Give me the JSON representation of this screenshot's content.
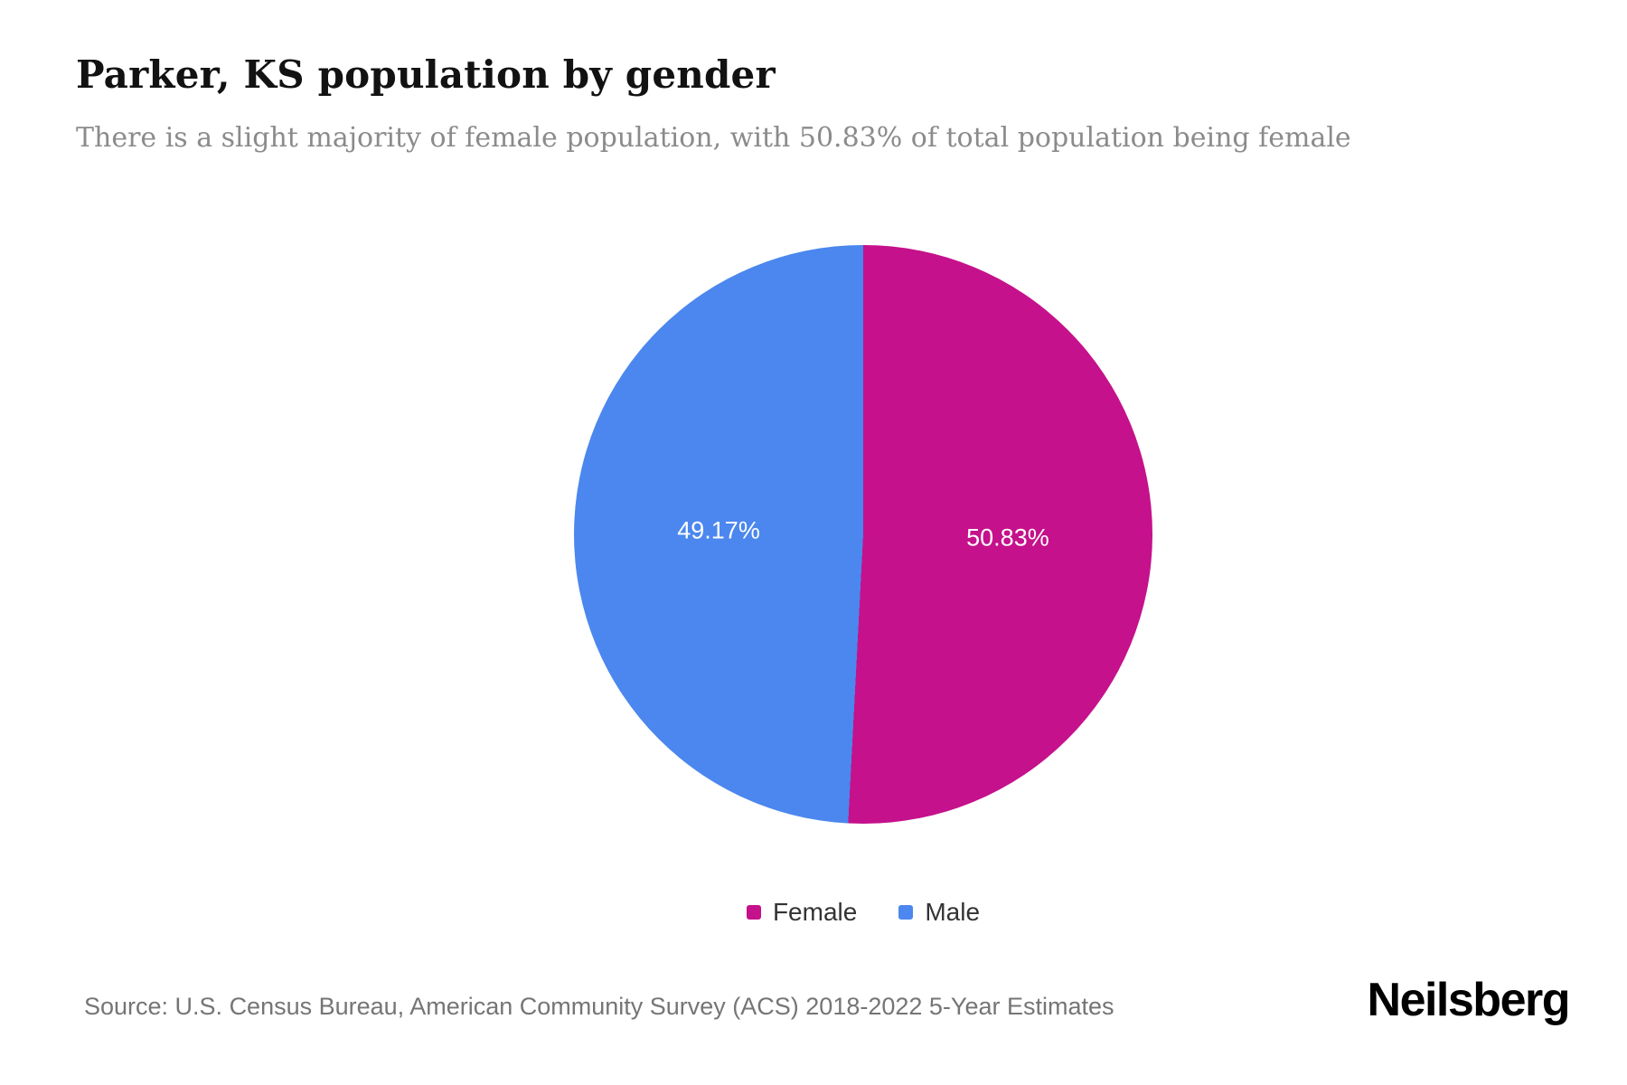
{
  "header": {
    "title": "Parker, KS population by gender",
    "subtitle": "There is a slight majority of female population, with 50.83% of total population being female"
  },
  "chart_data": {
    "type": "pie",
    "title": "Parker, KS population by gender",
    "start_angle_deg": 0,
    "direction": "clockwise",
    "label_radius": 0.5,
    "label_color": "#ffffff",
    "legend_position": "bottom",
    "slices": [
      {
        "label": "Female",
        "value": 50.83,
        "display": "50.83%",
        "color": "#c5118b"
      },
      {
        "label": "Male",
        "value": 49.17,
        "display": "49.17%",
        "color": "#4b87ee"
      }
    ]
  },
  "footer": {
    "source": "Source: U.S. Census Bureau, American Community Survey (ACS) 2018-2022 5-Year Estimates",
    "brand": "Neilsberg"
  }
}
